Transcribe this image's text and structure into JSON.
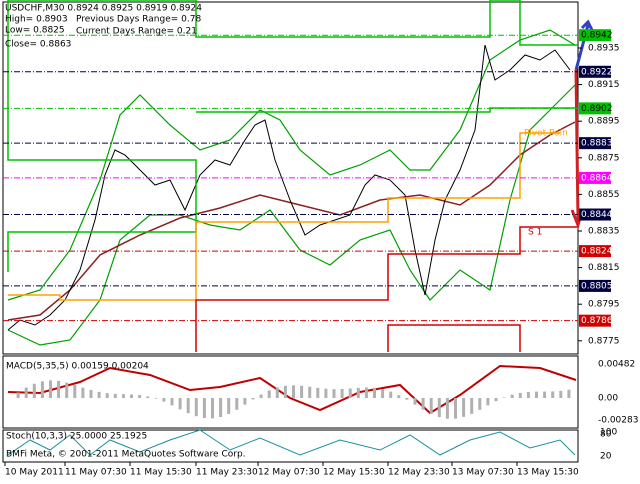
{
  "header": {
    "symbol_line": "USDCHF,M30  0.8924 0.8925 0.8919 0.8924",
    "high": "High= 0.8903",
    "low": "Low= 0.8825",
    "close": "Close= 0.8863",
    "prev_range": "Previous Days Range= 0.78",
    "cur_range": "Current Days Range= 0.21"
  },
  "price_axis": [
    "0.8935",
    "0.8915",
    "0.8895",
    "0.8875",
    "0.8855",
    "0.8835",
    "0.8815",
    "0.8795",
    "0.8775"
  ],
  "levels": [
    {
      "label": "0.8942",
      "color": "#00c000",
      "text": "#000"
    },
    {
      "label": "0.8922",
      "color": "#000040",
      "text": "#fff"
    },
    {
      "label": "0.8902",
      "color": "#00c000",
      "text": "#000"
    },
    {
      "label": "0.8883",
      "color": "#000040",
      "text": "#fff"
    },
    {
      "label": "0.8864",
      "color": "#ff00ff",
      "text": "#fff"
    },
    {
      "label": "0.8844",
      "color": "#000040",
      "text": "#fff"
    },
    {
      "label": "0.8824",
      "color": "#d00000",
      "text": "#fff"
    },
    {
      "label": "0.8805",
      "color": "#000040",
      "text": "#fff"
    },
    {
      "label": "0.8786",
      "color": "#d00000",
      "text": "#fff"
    }
  ],
  "pivot_label": "Pivot Poin",
  "s1_label": "S 1",
  "macd": {
    "title": "MACD(5,35,5) 0.00159 0.00204",
    "ticks": [
      "0.00482",
      "0.00",
      "-0.00283"
    ]
  },
  "stoch": {
    "title": "Stoch(10,3,3) 25.0000 25.1925",
    "ticks": [
      "100",
      "80",
      "20"
    ]
  },
  "copyright": "BMFi Meta, © 2001-2011 MetaQuotes Software Corp.",
  "time_axis": [
    "10 May 2011",
    "11 May 07:30",
    "11 May 15:30",
    "11 May 23:30",
    "12 May 07:30",
    "12 May 15:30",
    "12 May 23:30",
    "13 May 07:30",
    "13 May 15:30"
  ]
}
